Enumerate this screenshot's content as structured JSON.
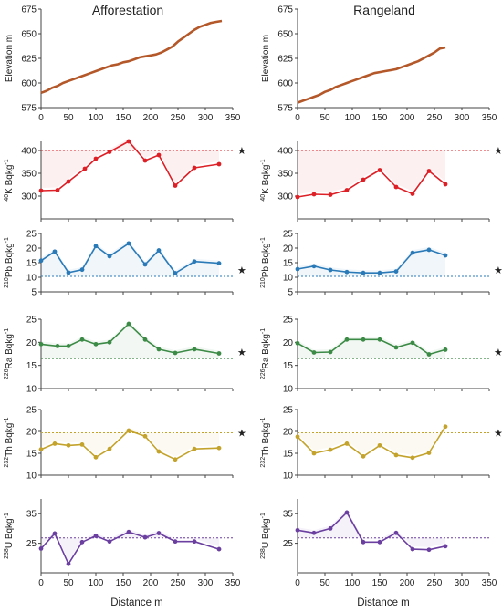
{
  "chart_data": [
    {
      "type": "line",
      "column": "Afforestation",
      "title": "Afforestation",
      "ylabel": "Elevation  m",
      "ylim": [
        575,
        675
      ],
      "yticks": [
        575,
        600,
        625,
        650,
        675
      ],
      "xlim": [
        0,
        350
      ],
      "xticks": [
        0,
        50,
        100,
        150,
        200,
        250,
        300,
        350
      ],
      "xticklabels": true,
      "color": "#b4582a",
      "markers": false,
      "x": [
        0,
        10,
        20,
        30,
        40,
        50,
        60,
        70,
        80,
        90,
        100,
        110,
        120,
        130,
        140,
        150,
        160,
        170,
        180,
        190,
        200,
        210,
        220,
        230,
        240,
        250,
        260,
        270,
        280,
        290,
        300,
        310,
        320,
        330
      ],
      "y": [
        590,
        592,
        595,
        597,
        600,
        602,
        604,
        606,
        608,
        610,
        612,
        614,
        616,
        618,
        619,
        621,
        622,
        624,
        626,
        627,
        628,
        629,
        631,
        634,
        637,
        642,
        646,
        650,
        654,
        657,
        659,
        661,
        662,
        663
      ]
    },
    {
      "type": "line",
      "column": "Rangeland",
      "title": "Rangeland",
      "ylabel": "Elevation  m",
      "ylim": [
        575,
        675
      ],
      "yticks": [
        575,
        600,
        625,
        650,
        675
      ],
      "xlim": [
        0,
        350
      ],
      "xticks": [
        0,
        50,
        100,
        150,
        200,
        250,
        300,
        350
      ],
      "xticklabels": true,
      "color": "#b4582a",
      "markers": false,
      "x": [
        0,
        10,
        20,
        30,
        40,
        50,
        60,
        70,
        80,
        90,
        100,
        110,
        120,
        130,
        140,
        150,
        160,
        170,
        180,
        190,
        200,
        210,
        220,
        230,
        240,
        250,
        260,
        270
      ],
      "y": [
        580,
        582,
        584,
        586,
        588,
        591,
        593,
        596,
        598,
        600,
        602,
        604,
        606,
        608,
        610,
        611,
        612,
        613,
        614,
        616,
        618,
        620,
        622,
        625,
        628,
        631,
        635,
        636
      ]
    },
    {
      "type": "line",
      "column": "Afforestation",
      "ylabel": "40K  Bqkg-1",
      "ylabel_sup_pre": "40",
      "ylabel_main": "K  Bqkg",
      "ylabel_sup_post": "-1",
      "ylim": [
        250,
        420
      ],
      "yticks": [
        300,
        350,
        400
      ],
      "xlim": [
        0,
        350
      ],
      "xticks": [
        0,
        50,
        100,
        150,
        200,
        250,
        300,
        350
      ],
      "xticklabels": false,
      "color": "#dd1f26",
      "markers": true,
      "reference": 400,
      "star": "★",
      "x": [
        0,
        30,
        50,
        80,
        100,
        125,
        160,
        190,
        215,
        245,
        280,
        325
      ],
      "y": [
        312,
        313,
        332,
        360,
        382,
        397,
        420,
        378,
        390,
        323,
        362,
        370
      ]
    },
    {
      "type": "line",
      "column": "Rangeland",
      "ylabel": "40K  Bqkg-1",
      "ylabel_sup_pre": "40",
      "ylabel_main": "K  Bqkg",
      "ylabel_sup_post": "-1",
      "ylim": [
        250,
        420
      ],
      "yticks": [
        300,
        350,
        400
      ],
      "xlim": [
        0,
        350
      ],
      "xticks": [
        0,
        50,
        100,
        150,
        200,
        250,
        300,
        350
      ],
      "xticklabels": false,
      "color": "#dd1f26",
      "markers": true,
      "reference": 400,
      "star": "★",
      "x": [
        0,
        30,
        60,
        90,
        120,
        150,
        180,
        210,
        240,
        270
      ],
      "y": [
        298,
        304,
        303,
        313,
        336,
        357,
        320,
        305,
        355,
        326
      ]
    },
    {
      "type": "line",
      "column": "Afforestation",
      "ylabel": "210Pb  Bqkg-1",
      "ylabel_sup_pre": "210",
      "ylabel_main": "Pb  Bqkg",
      "ylabel_sup_post": "-1",
      "ylim": [
        5,
        25
      ],
      "yticks": [
        5,
        10,
        15,
        20,
        25
      ],
      "xlim": [
        0,
        350
      ],
      "xticks": [
        0,
        50,
        100,
        150,
        200,
        250,
        300,
        350
      ],
      "xticklabels": false,
      "color": "#2a7ab8",
      "markers": true,
      "reference": 10.3,
      "star": "★",
      "x": [
        0,
        25,
        50,
        75,
        100,
        125,
        160,
        190,
        215,
        245,
        280,
        325
      ],
      "y": [
        15.7,
        18.8,
        11.6,
        12.6,
        20.7,
        17.2,
        21.6,
        14.4,
        19.2,
        11.4,
        15.4,
        14.8
      ]
    },
    {
      "type": "line",
      "column": "Rangeland",
      "ylabel": "210Pb  Bqkg-1",
      "ylabel_sup_pre": "210",
      "ylabel_main": "Pb  Bqkg",
      "ylabel_sup_post": "-1",
      "ylim": [
        5,
        25
      ],
      "yticks": [
        5,
        10,
        15,
        20,
        25
      ],
      "xlim": [
        0,
        350
      ],
      "xticks": [
        0,
        50,
        100,
        150,
        200,
        250,
        300,
        350
      ],
      "xticklabels": false,
      "color": "#2a7ab8",
      "markers": true,
      "reference": 10.3,
      "star": "★",
      "x": [
        0,
        30,
        60,
        90,
        120,
        150,
        180,
        210,
        240,
        270
      ],
      "y": [
        12.8,
        13.8,
        12.5,
        11.8,
        11.5,
        11.5,
        12.0,
        18.4,
        19.4,
        17.5
      ]
    },
    {
      "type": "line",
      "column": "Afforestation",
      "ylabel": "226Ra  Bqkg-1",
      "ylabel_sup_pre": "226",
      "ylabel_main": "Ra  Bqkg",
      "ylabel_sup_post": "-1",
      "ylim": [
        10,
        25
      ],
      "yticks": [
        10,
        15,
        20,
        25
      ],
      "xlim": [
        0,
        350
      ],
      "xticks": [
        0,
        50,
        100,
        150,
        200,
        250,
        300,
        350
      ],
      "xticklabels": false,
      "color": "#3b8a45",
      "markers": true,
      "reference": 16.5,
      "star": "★",
      "x": [
        0,
        30,
        50,
        75,
        100,
        125,
        160,
        190,
        215,
        245,
        280,
        325
      ],
      "y": [
        19.6,
        19.2,
        19.2,
        20.6,
        19.6,
        20.0,
        24.0,
        20.6,
        18.5,
        17.7,
        18.5,
        17.6
      ]
    },
    {
      "type": "line",
      "column": "Rangeland",
      "ylabel": "226Ra  Bqkg-1",
      "ylabel_sup_pre": "226",
      "ylabel_main": "Ra  Bqkg",
      "ylabel_sup_post": "-1",
      "ylim": [
        10,
        25
      ],
      "yticks": [
        10,
        15,
        20,
        25
      ],
      "xlim": [
        0,
        350
      ],
      "xticks": [
        0,
        50,
        100,
        150,
        200,
        250,
        300,
        350
      ],
      "xticklabels": false,
      "color": "#3b8a45",
      "markers": true,
      "reference": 16.5,
      "star": "★",
      "x": [
        0,
        30,
        60,
        90,
        120,
        150,
        180,
        210,
        240,
        270
      ],
      "y": [
        19.8,
        17.8,
        17.9,
        20.6,
        20.6,
        20.6,
        18.9,
        19.9,
        17.4,
        18.4
      ]
    },
    {
      "type": "line",
      "column": "Afforestation",
      "ylabel": "232Th  Bqkg-1",
      "ylabel_sup_pre": "232",
      "ylabel_main": "Th  Bqkg",
      "ylabel_sup_post": "-1",
      "ylim": [
        10,
        25
      ],
      "yticks": [
        10,
        15,
        20,
        25
      ],
      "xlim": [
        0,
        350
      ],
      "xticks": [
        0,
        50,
        100,
        150,
        200,
        250,
        300,
        350
      ],
      "xticklabels": false,
      "color": "#c4a32c",
      "markers": true,
      "reference": 19.7,
      "star": "★",
      "x": [
        0,
        25,
        50,
        75,
        100,
        125,
        160,
        190,
        215,
        245,
        280,
        325
      ],
      "y": [
        15.9,
        17.2,
        16.8,
        17.0,
        14.1,
        16.0,
        20.2,
        18.9,
        15.4,
        13.6,
        16.0,
        16.2
      ]
    },
    {
      "type": "line",
      "column": "Rangeland",
      "ylabel": "232Th  Bqkg-1",
      "ylabel_sup_pre": "232",
      "ylabel_main": "Th  Bqkg",
      "ylabel_sup_post": "-1",
      "ylim": [
        10,
        25
      ],
      "yticks": [
        10,
        15,
        20,
        25
      ],
      "xlim": [
        0,
        350
      ],
      "xticks": [
        0,
        50,
        100,
        150,
        200,
        250,
        300,
        350
      ],
      "xticklabels": false,
      "color": "#c4a32c",
      "markers": true,
      "reference": 19.7,
      "star": "★",
      "x": [
        0,
        30,
        60,
        90,
        120,
        150,
        180,
        210,
        240,
        270
      ],
      "y": [
        18.8,
        15.0,
        15.8,
        17.2,
        14.3,
        16.8,
        14.6,
        14.0,
        15.1,
        21.1
      ]
    },
    {
      "type": "line",
      "column": "Afforestation",
      "ylabel": "238U  Bqkg-1",
      "ylabel_sup_pre": "238",
      "ylabel_main": "U  Bqkg",
      "ylabel_sup_post": "-1",
      "ylim": [
        15,
        40
      ],
      "yticks": [
        25,
        35
      ],
      "xlim": [
        0,
        350
      ],
      "xticks": [
        0,
        50,
        100,
        150,
        200,
        250,
        300,
        350
      ],
      "xticklabels": true,
      "color": "#6b3fa0",
      "markers": true,
      "reference": 26.8,
      "x": [
        0,
        25,
        50,
        75,
        100,
        125,
        160,
        190,
        215,
        245,
        280,
        325
      ],
      "y": [
        23.2,
        28.3,
        18.0,
        25.4,
        27.5,
        25.6,
        28.8,
        27.0,
        28.4,
        25.6,
        25.6,
        23.0
      ]
    },
    {
      "type": "line",
      "column": "Rangeland",
      "ylabel": "238U  Bqkg-1",
      "ylabel_sup_pre": "238",
      "ylabel_main": "U  Bqkg",
      "ylabel_sup_post": "-1",
      "ylim": [
        15,
        40
      ],
      "yticks": [
        25,
        35
      ],
      "xlim": [
        0,
        350
      ],
      "xticks": [
        0,
        50,
        100,
        150,
        200,
        250,
        300,
        350
      ],
      "xticklabels": true,
      "color": "#6b3fa0",
      "markers": true,
      "reference": 26.8,
      "x": [
        0,
        30,
        60,
        90,
        120,
        150,
        180,
        210,
        240,
        270
      ],
      "y": [
        29.4,
        28.5,
        30.0,
        35.4,
        25.4,
        25.4,
        28.5,
        23.0,
        22.8,
        24.0
      ]
    }
  ],
  "xlabel": "Distance  m"
}
